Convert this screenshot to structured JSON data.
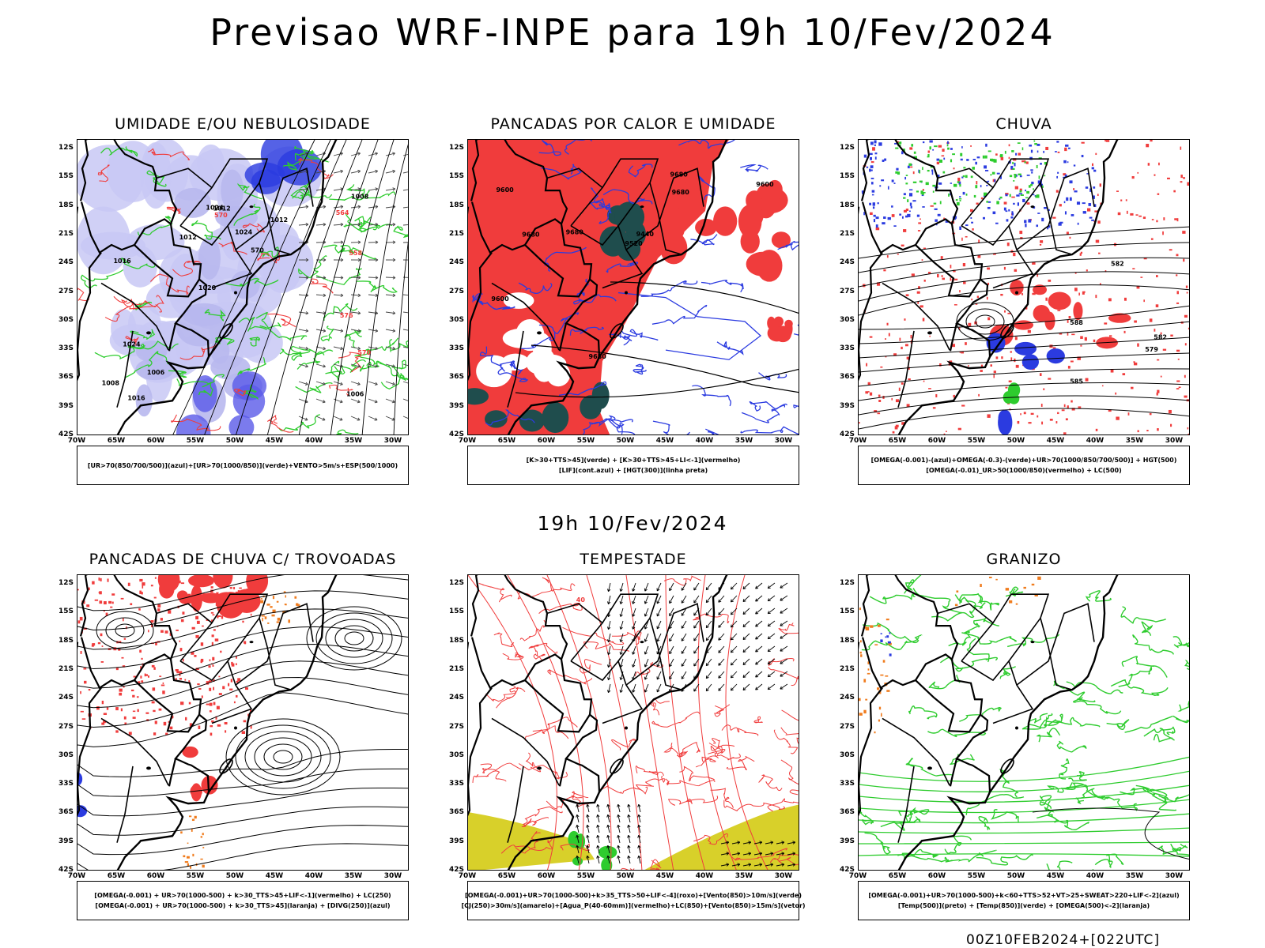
{
  "title": "Previsao WRF-INPE  para 19h 10/Fev/2024",
  "mid_title": "19h 10/Fev/2024",
  "footer": "00Z10FEB2024+[022UTC]",
  "axes": {
    "lat_labels": [
      "12S",
      "15S",
      "18S",
      "21S",
      "24S",
      "27S",
      "30S",
      "33S",
      "36S",
      "39S",
      "42S"
    ],
    "lon_labels": [
      "70W",
      "65W",
      "60W",
      "55W",
      "50W",
      "45W",
      "40W",
      "35W",
      "30W"
    ]
  },
  "colors": {
    "red": "#f03c3c",
    "green": "#2ecc2e",
    "blue": "#2b3be0",
    "light_blue": "#b8b8ee",
    "lavender": "#c8c8f4",
    "dark_teal": "#1f4d4d",
    "yellow": "#d8d02a",
    "orange": "#f07c1e",
    "black": "#000000"
  },
  "panels": [
    {
      "title": "UMIDADE E/OU NEBULOSIDADE",
      "legend": [
        "[UR>70(850/700/500)](azul)+[UR>70(1000/850)](verde)+VENTO>5m/s+ESP(500/1000)"
      ],
      "contour_labels": [
        "1006",
        "1016",
        "1008",
        "1020",
        "1012",
        "1016",
        "1024",
        "1024",
        "1024",
        "1012",
        "1008",
        "1006",
        "1012",
        "570",
        "570",
        "576",
        "564",
        "558",
        "570"
      ]
    },
    {
      "title": "PANCADAS POR CALOR E UMIDADE",
      "legend": [
        "[K>30+TTS>45](verde) + [K>30+TTS>45+LI<-1](vermelho)",
        "[LIF](cont.azul) + [HGT(300)](linha preta)"
      ],
      "contour_labels": [
        "9680",
        "9600",
        "9680",
        "9680",
        "9680",
        "9600",
        "9680",
        "9520",
        "9440",
        "9600"
      ]
    },
    {
      "title": "CHUVA",
      "legend": [
        "[OMEGA(-0.001)-(azul)+OMEGA(-0.3)-(verde)+UR>70(1000/850/700/500)] + HGT(500)",
        "[OMEGA(-0.01)_UR>50(1000/850)(vermelho) + LC(500)"
      ],
      "contour_labels": [
        "588",
        "582",
        "582",
        "579",
        "585"
      ]
    },
    {
      "title": "PANCADAS DE CHUVA C/ TROVOADAS",
      "legend": [
        "[OMEGA(-0.001) + UR>70(1000-500) + k>30_TTS>45+LIF<-1](vermelho) + LC(250)",
        "[OMEGA(-0.001) + UR>70(1000-500) + k>30_TTS>45](laranja) + [DIVG(250)](azul)"
      ],
      "contour_labels": []
    },
    {
      "title": "TEMPESTADE",
      "legend": [
        "[OMEGA(-0.001)+UR>70(1000-500)+k>35_TTS>50+LIF<-4](roxo)+[Vento(850)>10m/s](verde)",
        "[CJ(250)>30m/s](amarelo)+[Agua_P(40-60mm)](vermelho)+LC(850)+[Vento(850)>15m/s](vetor)"
      ],
      "contour_labels": [
        "40"
      ]
    },
    {
      "title": "GRANIZO",
      "legend": [
        "[OMEGA(-0.001)+UR>70(1000-500)+k<60+TTS>52+VT>25+SWEAT>220+LIF<-2](azul)",
        "[Temp(500)](preto) + [Temp(850)](verde) + [OMEGA(500)<-2](laranja)"
      ],
      "contour_labels": []
    }
  ]
}
